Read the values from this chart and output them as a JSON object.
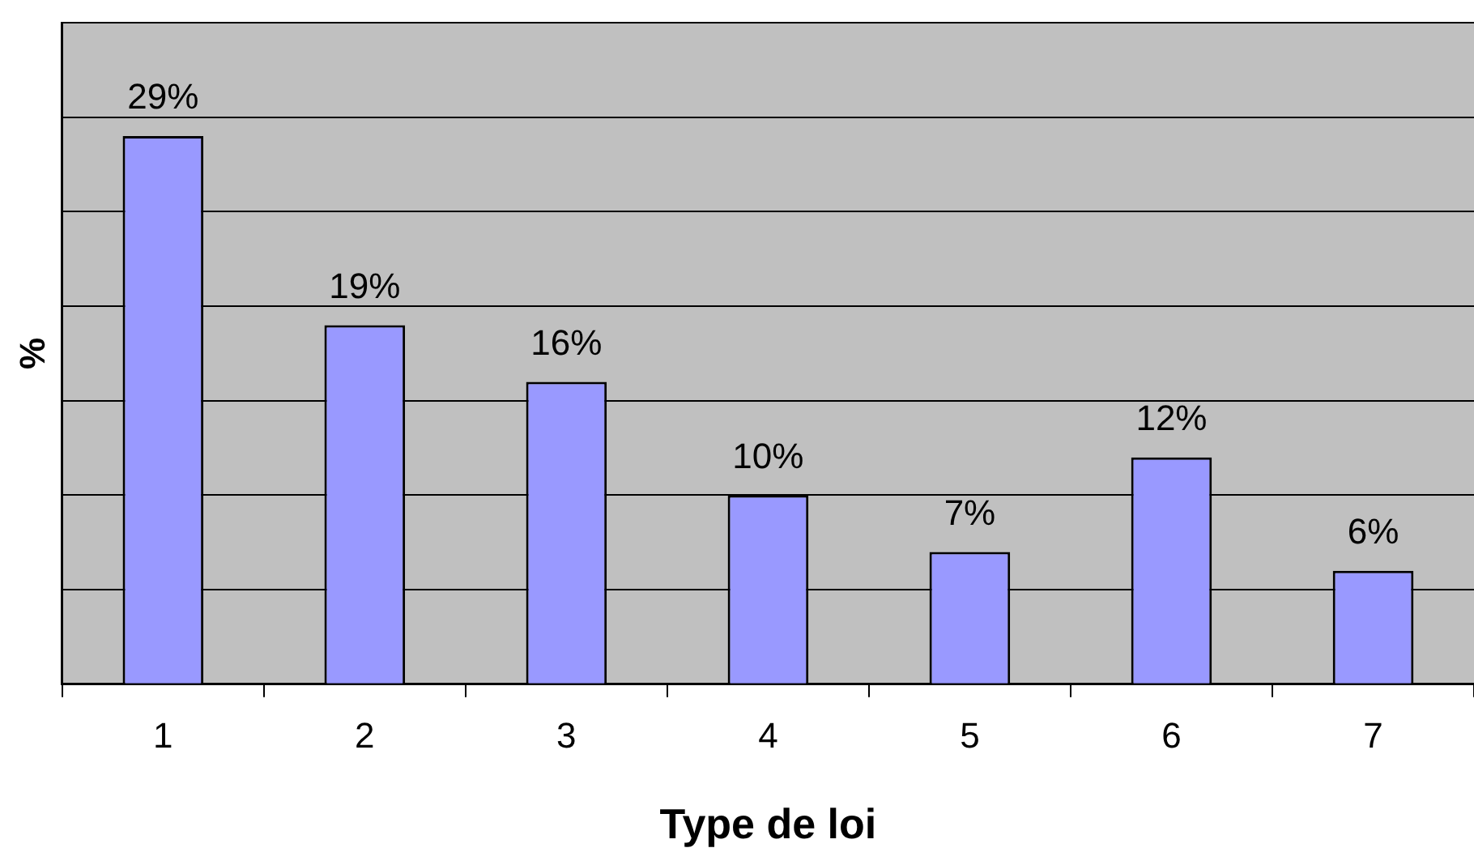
{
  "chart_data": {
    "type": "bar",
    "xlabel": "Type de loi",
    "ylabel": "%",
    "categories": [
      "1",
      "2",
      "3",
      "4",
      "5",
      "6",
      "7"
    ],
    "values": [
      29,
      19,
      16,
      10,
      7,
      12,
      6
    ],
    "value_labels": [
      "29%",
      "19%",
      "16%",
      "10%",
      "7%",
      "12%",
      "6%"
    ],
    "color": "#9999ff",
    "ylim": [
      0,
      35
    ],
    "tick_labels": "x",
    "grid": "y",
    "legend": false
  }
}
